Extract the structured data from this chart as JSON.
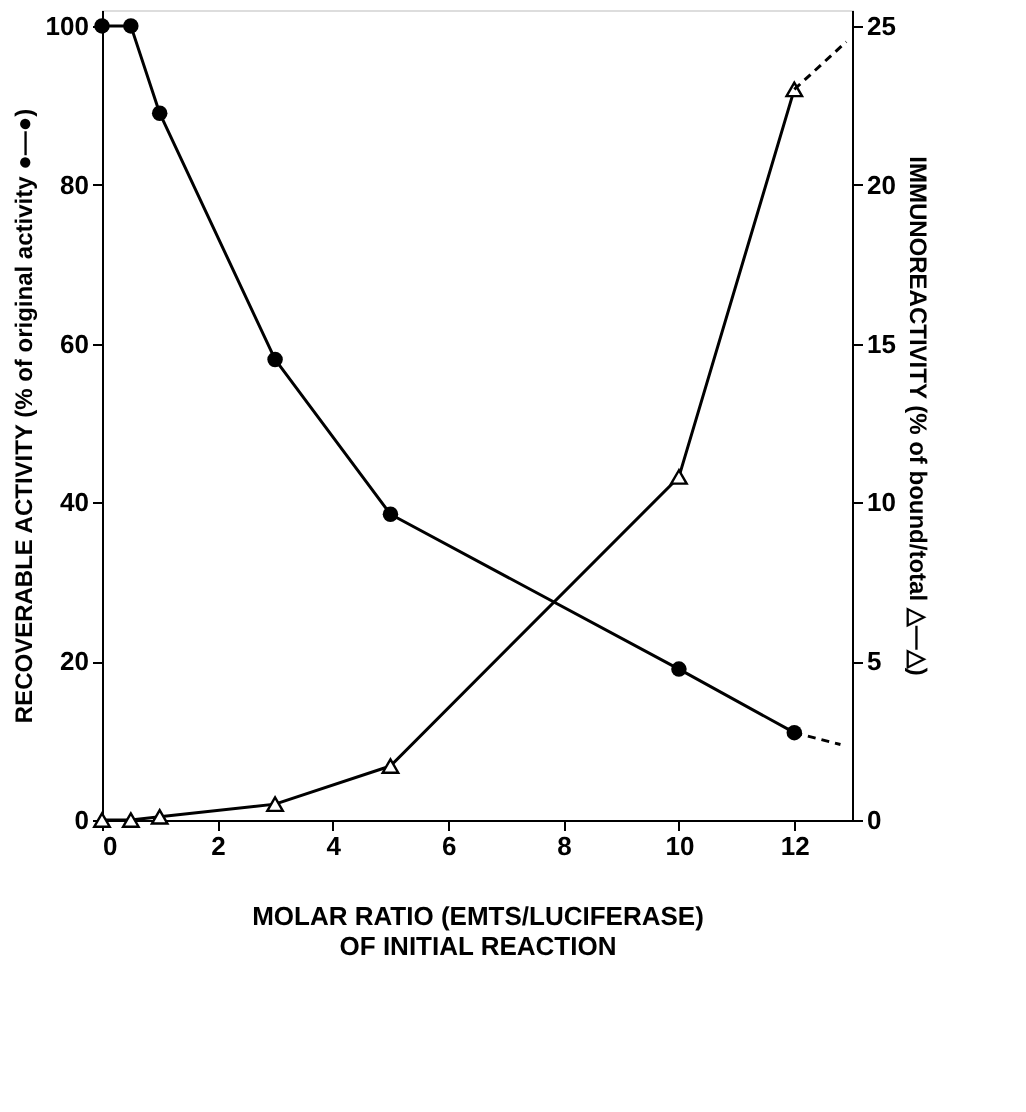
{
  "chart_data": {
    "type": "line",
    "xlabel": "MOLAR RATIO (EMTS/LUCIFERASE)\nOF INITIAL REACTION",
    "ylabel": "RECOVERABLE ACTIVITY (% of original activity ●—●)",
    "y2label": "IMMUNOREACTIVITY (% of bound/total △—△)",
    "xlim": [
      0,
      13
    ],
    "xticks": [
      0,
      2,
      4,
      6,
      8,
      10,
      12
    ],
    "ylim": [
      0,
      102
    ],
    "yticks": [
      0,
      20,
      40,
      60,
      80,
      100
    ],
    "y2lim": [
      0,
      25.5
    ],
    "y2ticks": [
      0,
      5,
      10,
      15,
      20,
      25
    ],
    "grid": false,
    "series": [
      {
        "color": "#000000",
        "marker": "circle",
        "line_style": "solid",
        "x": [
          0,
          0.5,
          1,
          3,
          5,
          10,
          12
        ],
        "values": [
          100,
          100,
          89,
          58,
          38.5,
          19,
          11
        ]
      },
      {
        "color": "#000000",
        "marker": "none",
        "line_style": "dashed",
        "x": [
          12,
          12.8
        ],
        "values": [
          11,
          9.5
        ]
      },
      {
        "color": "#000000",
        "marker": "triangle",
        "line_style": "solid",
        "axis": "y2",
        "x": [
          0,
          0.5,
          1,
          3,
          5,
          10,
          12
        ],
        "values": [
          0,
          0,
          0.1,
          0.5,
          1.7,
          10.8,
          23
        ]
      },
      {
        "color": "#000000",
        "marker": "none",
        "line_style": "dashed",
        "axis": "y2",
        "x": [
          12,
          12.9
        ],
        "values": [
          23,
          24.5
        ]
      }
    ]
  }
}
